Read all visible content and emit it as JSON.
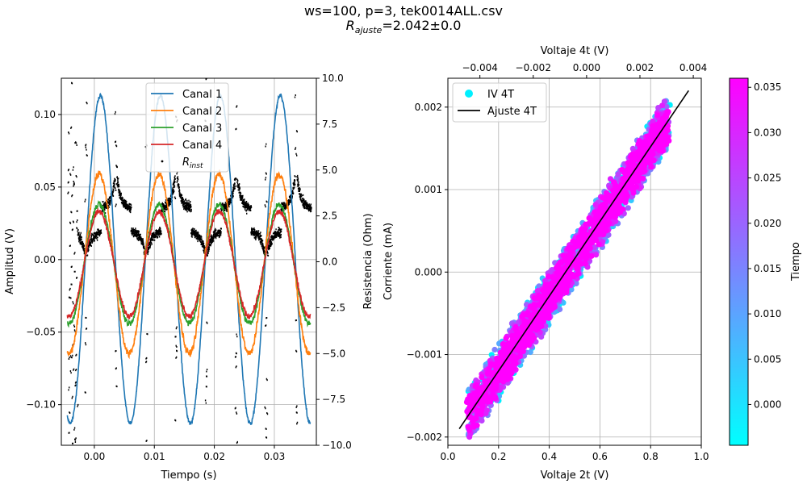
{
  "figure": {
    "title_line1": "ws=100, p=3, tek0014ALL.csv",
    "title_line2_R": "R",
    "title_line2_sub": "ajuste",
    "title_line2_rest": "=2.042±0.0"
  },
  "chart_data": [
    {
      "type": "line",
      "xlabel": "Tiempo (s)",
      "ylabel": "Amplitud (V)",
      "y2label": "Resistencia (Ohm)",
      "xlim": [
        -0.0055,
        0.037
      ],
      "ylim": [
        -0.128,
        0.125
      ],
      "y2lim": [
        -10.0,
        10.0
      ],
      "xticks": [
        "0.00",
        "0.01",
        "0.02",
        "0.03"
      ],
      "yticks": [
        "−0.10",
        "−0.05",
        "0.00",
        "0.05",
        "0.10"
      ],
      "y2ticks": [
        "−10.0",
        "−7.5",
        "−5.0",
        "−2.5",
        "0.0",
        "2.5",
        "5.0",
        "7.5",
        "10.0"
      ],
      "grid": true,
      "legend_position": "top-center",
      "period_s": 0.01,
      "series": [
        {
          "name": "Canal 1",
          "color": "#1f77b4",
          "amplitude": 0.113,
          "phase_peak_s": 0.001,
          "noise": 0.002
        },
        {
          "name": "Canal 2",
          "color": "#ff7f0e",
          "amplitude": 0.062,
          "phase_peak_s": 0.0008,
          "noise": 0.004
        },
        {
          "name": "Canal 3",
          "color": "#2ca02c",
          "amplitude": 0.041,
          "phase_peak_s": 0.0008,
          "noise": 0.003
        },
        {
          "name": "Canal 4",
          "color": "#d62728",
          "amplitude": 0.036,
          "phase_peak_s": 0.0008,
          "noise": 0.003
        }
      ],
      "resistance_series": {
        "name": "R",
        "name_sub": "inst",
        "color": "#000000",
        "upper_level_ohm": 2.9,
        "lower_level_ohm": 1.7
      },
      "x_range_data": [
        -0.0045,
        0.036
      ]
    },
    {
      "type": "scatter",
      "xlabel": "Voltaje 2t (V)",
      "ylabel": "Corriente (mA)",
      "x2label": "Voltaje 4t (V)",
      "xlim": [
        0.0,
        1.0
      ],
      "ylim": [
        -0.0021,
        0.00235
      ],
      "x2lim": [
        -0.0052,
        0.0043
      ],
      "xticks": [
        "0.0",
        "0.2",
        "0.4",
        "0.6",
        "0.8",
        "1.0"
      ],
      "yticks": [
        "−0.002",
        "−0.001",
        "0.000",
        "0.001",
        "0.002"
      ],
      "x2ticks": [
        "−0.004",
        "−0.002",
        "0.000",
        "0.002",
        "0.004"
      ],
      "grid": true,
      "legend_position": "top-left",
      "series": [
        {
          "name": "IV 4T",
          "type": "scatter",
          "x_range": [
            0.08,
            0.87
          ],
          "y_range": [
            -0.00168,
            0.00188
          ]
        },
        {
          "name": "Ajuste 4T",
          "type": "line",
          "color": "#000000",
          "x": [
            0.045,
            0.95
          ],
          "y": [
            -0.0019,
            0.0022
          ]
        }
      ],
      "colorbar": {
        "label": "Tiempo",
        "range": [
          -0.0045,
          0.036
        ],
        "ticks": [
          "0.000",
          "0.005",
          "0.010",
          "0.015",
          "0.020",
          "0.025",
          "0.030",
          "0.035"
        ],
        "colormap": [
          "#00ffff",
          "#ff00ff"
        ]
      }
    }
  ]
}
